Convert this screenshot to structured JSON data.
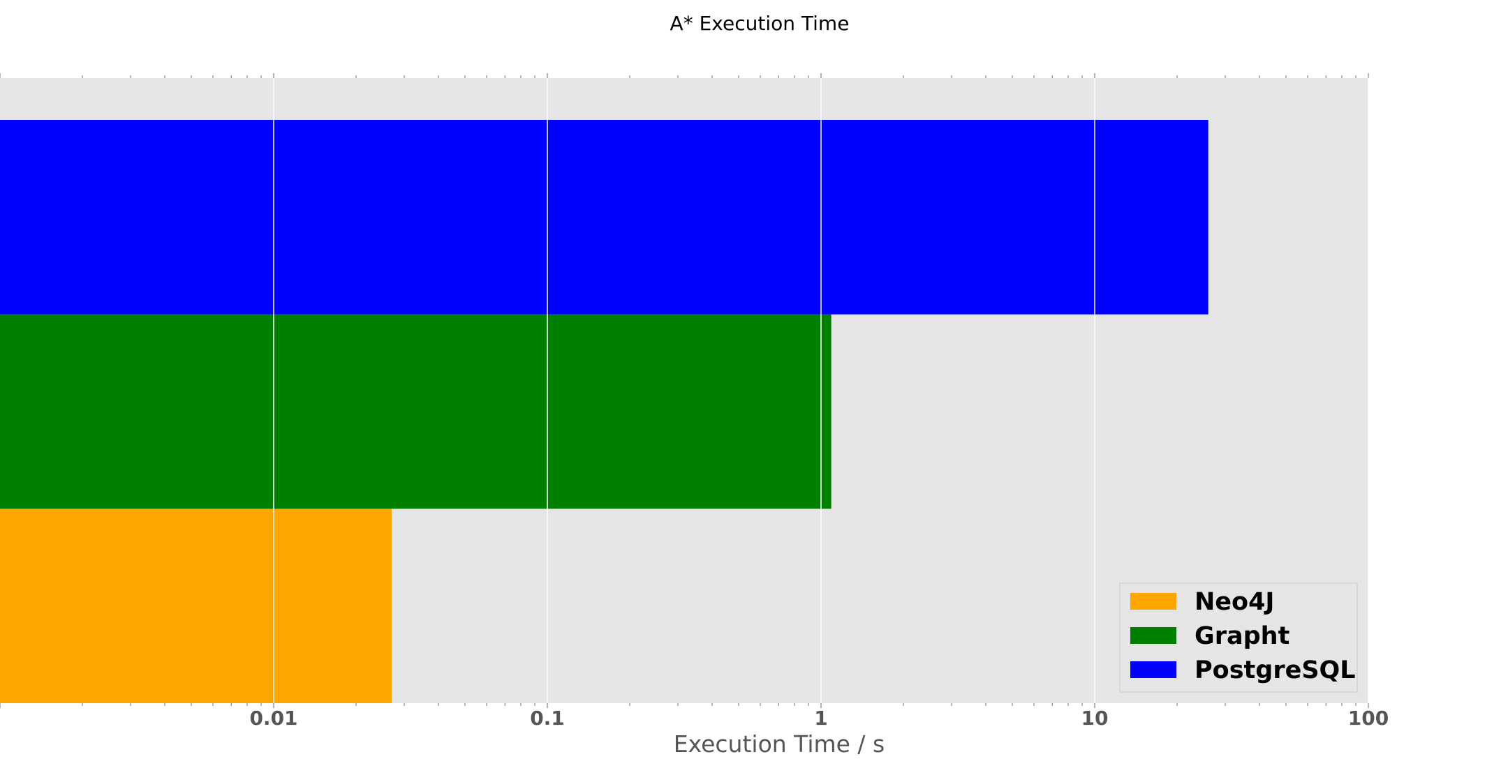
{
  "chart_data": {
    "type": "bar",
    "orientation": "horizontal",
    "title": "A* Execution Time",
    "xlabel": "Execution Time / s",
    "ylabel": "",
    "x_scale": "log",
    "xlim": [
      0.001,
      100
    ],
    "xticks": [
      {
        "value": 0.01,
        "label": "0.01"
      },
      {
        "value": 0.1,
        "label": "0.1"
      },
      {
        "value": 1,
        "label": "1"
      },
      {
        "value": 10,
        "label": "10"
      },
      {
        "value": 100,
        "label": "100"
      }
    ],
    "series": [
      {
        "name": "Neo4J",
        "value": 0.027,
        "color": "#FFA500"
      },
      {
        "name": "Grapht",
        "value": 1.09,
        "color": "#008000"
      },
      {
        "name": "PostgreSQL",
        "value": 26.0,
        "color": "#0000FF"
      }
    ],
    "grid": true,
    "legend_position": "bottom-right",
    "background": "#E5E5E5"
  }
}
